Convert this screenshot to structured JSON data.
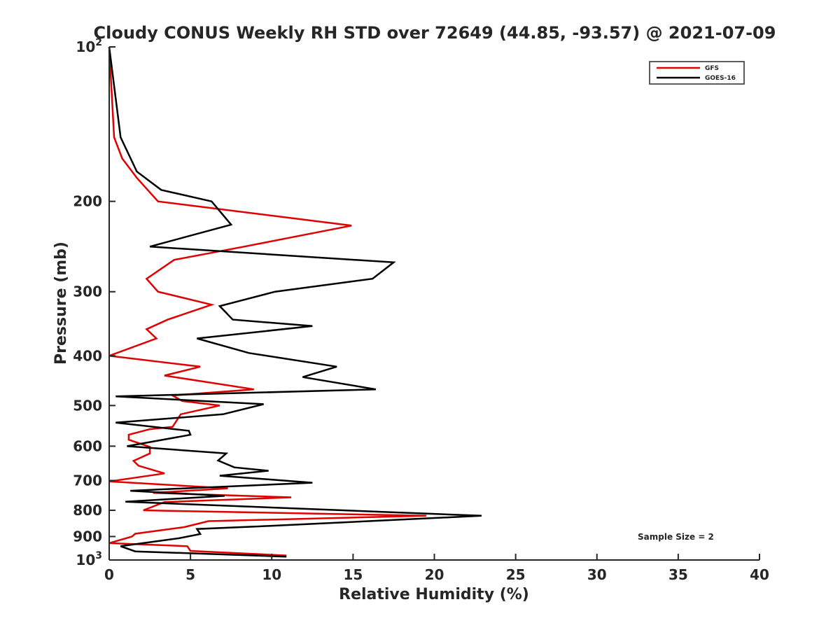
{
  "chart_data": {
    "type": "line",
    "title": "Cloudy CONUS Weekly RH STD over 72649 (44.85, -93.57) @ 2021-07-09",
    "xlabel": "Relative Humidity (%)",
    "ylabel": "Pressure (mb)",
    "xlim": [
      0,
      40
    ],
    "ylim": [
      100,
      1000
    ],
    "yscale": "log",
    "y_reversed": true,
    "x_ticks": [
      "0",
      "5",
      "10",
      "15",
      "20",
      "25",
      "30",
      "35",
      "40"
    ],
    "y_ticks": [
      {
        "value": 100,
        "base": "10",
        "exp": "2"
      },
      {
        "value": 200,
        "label": "200"
      },
      {
        "value": 300,
        "label": "300"
      },
      {
        "value": 400,
        "label": "400"
      },
      {
        "value": 500,
        "label": "500"
      },
      {
        "value": 600,
        "label": "600"
      },
      {
        "value": 700,
        "label": "700"
      },
      {
        "value": 800,
        "label": "800"
      },
      {
        "value": 900,
        "label": "900"
      },
      {
        "value": 1000,
        "base": "10",
        "exp": "3"
      }
    ],
    "legend_position": "top-right",
    "annotation": "Sample Size = 2",
    "series": [
      {
        "name": "GFS",
        "color": "#e00000",
        "points": [
          [
            0.0,
            100
          ],
          [
            0.3,
            150
          ],
          [
            0.8,
            165
          ],
          [
            1.7,
            180
          ],
          [
            3.0,
            200
          ],
          [
            14.9,
            223
          ],
          [
            8.3,
            245
          ],
          [
            4.0,
            260
          ],
          [
            2.3,
            283
          ],
          [
            3.0,
            300
          ],
          [
            6.3,
            318
          ],
          [
            3.6,
            340
          ],
          [
            2.3,
            355
          ],
          [
            2.9,
            370
          ],
          [
            0.0,
            400
          ],
          [
            5.6,
            420
          ],
          [
            3.4,
            437
          ],
          [
            8.9,
            465
          ],
          [
            3.9,
            478
          ],
          [
            4.5,
            490
          ],
          [
            6.8,
            500
          ],
          [
            4.4,
            520
          ],
          [
            3.9,
            550
          ],
          [
            2.5,
            556
          ],
          [
            1.2,
            570
          ],
          [
            1.2,
            583
          ],
          [
            2.5,
            602
          ],
          [
            2.5,
            620
          ],
          [
            1.5,
            641
          ],
          [
            1.8,
            655
          ],
          [
            3.4,
            678
          ],
          [
            0.0,
            703
          ],
          [
            7.3,
            725
          ],
          [
            2.7,
            740
          ],
          [
            11.2,
            755
          ],
          [
            3.4,
            771
          ],
          [
            2.1,
            800
          ],
          [
            19.5,
            820
          ],
          [
            6.1,
            840
          ],
          [
            4.6,
            863
          ],
          [
            1.6,
            889
          ],
          [
            1.4,
            900
          ],
          [
            0.0,
            927
          ],
          [
            4.8,
            940
          ],
          [
            5.0,
            960
          ],
          [
            10.9,
            980
          ]
        ]
      },
      {
        "name": "GOES-16",
        "color": "#000000",
        "points": [
          [
            0.0,
            100
          ],
          [
            0.7,
            150
          ],
          [
            1.7,
            175
          ],
          [
            3.2,
            190
          ],
          [
            6.3,
            200
          ],
          [
            7.5,
            222
          ],
          [
            2.5,
            245
          ],
          [
            17.5,
            263
          ],
          [
            16.2,
            283
          ],
          [
            10.2,
            300
          ],
          [
            6.8,
            320
          ],
          [
            7.6,
            340
          ],
          [
            12.5,
            350
          ],
          [
            5.4,
            370
          ],
          [
            8.6,
            395
          ],
          [
            14.0,
            420
          ],
          [
            11.9,
            440
          ],
          [
            16.4,
            465
          ],
          [
            0.4,
            480
          ],
          [
            9.5,
            497
          ],
          [
            7.0,
            520
          ],
          [
            0.4,
            540
          ],
          [
            4.9,
            560
          ],
          [
            5.0,
            570
          ],
          [
            1.1,
            600
          ],
          [
            7.2,
            620
          ],
          [
            6.7,
            640
          ],
          [
            7.7,
            660
          ],
          [
            9.8,
            670
          ],
          [
            6.8,
            685
          ],
          [
            12.5,
            707
          ],
          [
            1.3,
            733
          ],
          [
            7.1,
            750
          ],
          [
            1.0,
            770
          ],
          [
            22.9,
            820
          ],
          [
            9.2,
            860
          ],
          [
            5.4,
            870
          ],
          [
            5.6,
            890
          ],
          [
            4.3,
            907
          ],
          [
            0.7,
            940
          ],
          [
            1.6,
            962
          ],
          [
            10.9,
            985
          ]
        ]
      }
    ]
  }
}
